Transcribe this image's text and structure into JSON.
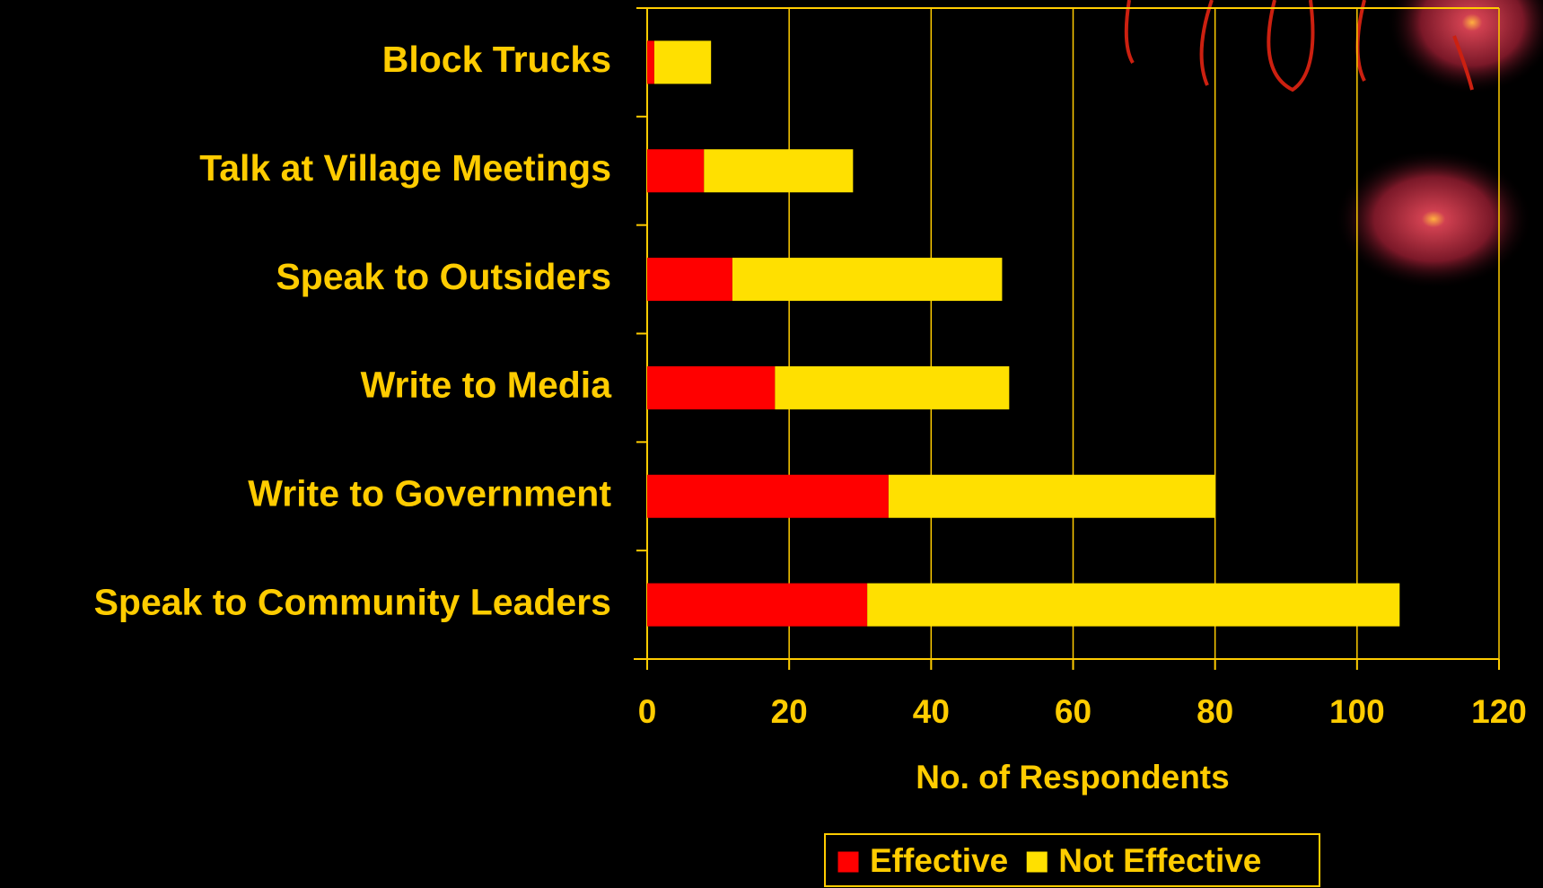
{
  "chart_data": {
    "type": "bar",
    "orientation": "horizontal",
    "stacked": true,
    "categories": [
      "Block Trucks",
      "Talk at Village Meetings",
      "Speak to Outsiders",
      "Write to Media",
      "Write to Government",
      "Speak to Community Leaders"
    ],
    "series": [
      {
        "name": "Effective",
        "color": "#ff0000",
        "values": [
          1,
          8,
          12,
          18,
          34,
          31
        ]
      },
      {
        "name": "Not Effective",
        "color": "#ffe000",
        "values": [
          8,
          21,
          38,
          33,
          46,
          75
        ]
      }
    ],
    "x_label": "No. of Respondents",
    "xlim": [
      0,
      120
    ],
    "xticks": [
      0,
      20,
      40,
      60,
      80,
      100,
      120
    ],
    "grid": true,
    "legend": "bottom"
  }
}
